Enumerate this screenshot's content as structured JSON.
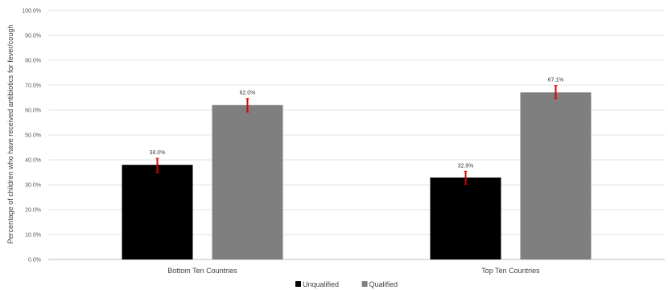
{
  "chart_data": {
    "type": "bar",
    "title": "",
    "xlabel": "",
    "ylabel": "Percentage of children who have received antibiotics for fever/cough",
    "ylim": [
      0,
      100
    ],
    "yticks": [
      0,
      10,
      20,
      30,
      40,
      50,
      60,
      70,
      80,
      90,
      100
    ],
    "ytick_labels": [
      "0.0%",
      "10.0%",
      "20.0%",
      "30.0%",
      "40.0%",
      "50.0%",
      "60.0%",
      "70.0%",
      "80.0%",
      "90.0%",
      "100.0%"
    ],
    "categories": [
      "Bottom Ten Countries",
      "Top Ten Countries"
    ],
    "series": [
      {
        "name": "Unqualified",
        "color": "#000000",
        "values": [
          38.0,
          32.9
        ],
        "labels": [
          "38.0%",
          "32.9%"
        ],
        "error": [
          [
            34.8,
            40.6
          ],
          [
            30.2,
            35.4
          ]
        ]
      },
      {
        "name": "Qualified",
        "color": "#7f7f7f",
        "values": [
          62.0,
          67.1
        ],
        "labels": [
          "62.0%",
          "67.1%"
        ],
        "error": [
          [
            59.2,
            64.6
          ],
          [
            64.6,
            69.8
          ]
        ]
      }
    ],
    "error_bar_color": "#e00000",
    "grid": true,
    "legend_position": "bottom"
  }
}
